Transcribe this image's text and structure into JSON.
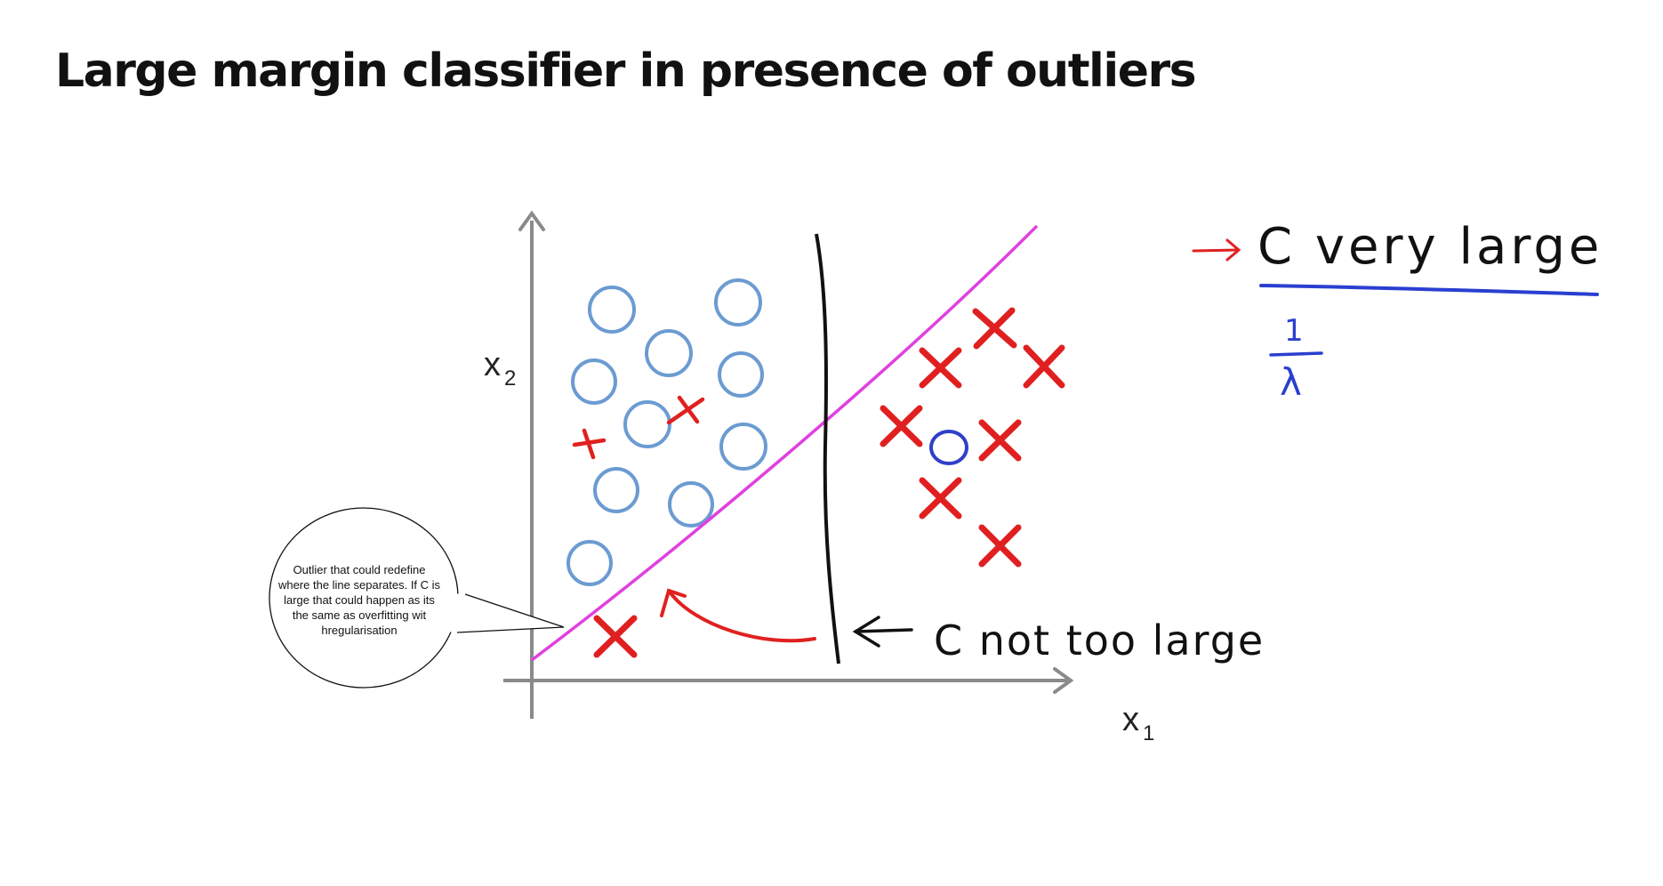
{
  "title": "Large margin classifier in presence of outliers",
  "axes": {
    "x_label": "x",
    "x_subscript": "1",
    "y_label": "x",
    "y_subscript": "2"
  },
  "annotations": {
    "c_very_large": "C  very  large",
    "reciprocal_numerator": "1",
    "reciprocal_denominator": "λ",
    "c_not_too_large": "C   not too large"
  },
  "callout": {
    "text": "Outlier that could redefine where the line separates. If C is large that could happen as its the same as overfitting wit hregularisation"
  },
  "colors": {
    "circle_class": "#6b9bd1",
    "outlier_circle": "#2f3fc9",
    "cross_class": "#e02020",
    "decision_boundary_large_c": "#e040e0",
    "decision_boundary_small_c": "#111111",
    "underline": "#2a3fd0",
    "axes": "#8a8a8a"
  },
  "legend_marks": {
    "circle": "o",
    "cross": "x"
  }
}
